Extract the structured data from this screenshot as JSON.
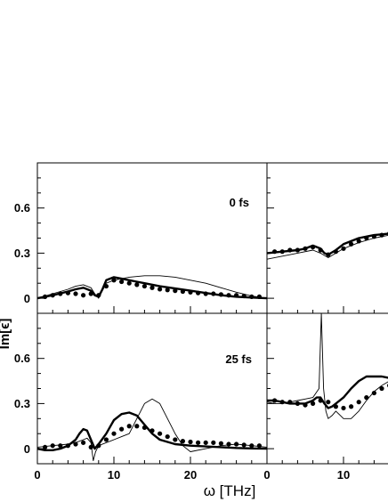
{
  "chart_data": {
    "type": "line",
    "xlabel": "ω  [THz]",
    "ylabel": "Im[ϵ]",
    "xlim": [
      0,
      30
    ],
    "ylim": [
      -0.1,
      0.9
    ],
    "x_ticks": [
      "0",
      "10",
      "20",
      "0",
      "10"
    ],
    "y_ticks": [
      "0",
      "0.3",
      "0.6"
    ],
    "panels": [
      {
        "id": "top-left",
        "label": "0 fs",
        "series": [
          {
            "style": "thick",
            "x": [
              0,
              2,
              4,
              5,
              6,
              7,
              7.5,
              8,
              8.5,
              9,
              10,
              11,
              12,
              13,
              14,
              16,
              18,
              20,
              22,
              24,
              26,
              28,
              30
            ],
            "y": [
              0,
              0.02,
              0.045,
              0.06,
              0.07,
              0.05,
              0.02,
              0.01,
              0.06,
              0.12,
              0.14,
              0.13,
              0.12,
              0.11,
              0.1,
              0.08,
              0.065,
              0.05,
              0.035,
              0.02,
              0.01,
              0.005,
              0
            ]
          },
          {
            "style": "thin",
            "x": [
              0,
              2,
              4,
              5,
              6,
              7,
              7.5,
              8,
              8.5,
              9,
              10,
              12,
              14,
              16,
              18,
              20,
              22,
              24,
              26,
              28,
              30
            ],
            "y": [
              0,
              0.03,
              0.06,
              0.08,
              0.09,
              0.07,
              0.03,
              0.0,
              0.05,
              0.1,
              0.12,
              0.14,
              0.15,
              0.15,
              0.14,
              0.12,
              0.1,
              0.07,
              0.04,
              0.015,
              0
            ]
          },
          {
            "style": "dots",
            "x": [
              1,
              2,
              3,
              4,
              5,
              6,
              7,
              8,
              9,
              10,
              11,
              12,
              13,
              14,
              15,
              16,
              17,
              18,
              19,
              20,
              21,
              22,
              23,
              24,
              25,
              26,
              27,
              28,
              29
            ],
            "y": [
              0.01,
              0.02,
              0.03,
              0.035,
              0.03,
              0.02,
              0.03,
              0.02,
              0.08,
              0.12,
              0.11,
              0.1,
              0.09,
              0.08,
              0.07,
              0.06,
              0.055,
              0.05,
              0.045,
              0.04,
              0.035,
              0.03,
              0.03,
              0.025,
              0.02,
              0.02,
              0.015,
              0.01,
              0.01
            ]
          }
        ]
      },
      {
        "id": "top-right",
        "label": "",
        "series": [
          {
            "style": "thick",
            "x": [
              0,
              2,
              4,
              5,
              6,
              7,
              7.5,
              8,
              9,
              10,
              11,
              12,
              13,
              14,
              15,
              16
            ],
            "y": [
              0.3,
              0.31,
              0.32,
              0.33,
              0.35,
              0.33,
              0.3,
              0.29,
              0.32,
              0.36,
              0.38,
              0.4,
              0.41,
              0.42,
              0.425,
              0.43
            ]
          },
          {
            "style": "thin",
            "x": [
              0,
              2,
              4,
              6,
              7,
              8,
              9,
              10,
              12,
              14,
              16
            ],
            "y": [
              0.26,
              0.28,
              0.3,
              0.32,
              0.3,
              0.27,
              0.3,
              0.33,
              0.37,
              0.4,
              0.42
            ]
          },
          {
            "style": "dots",
            "x": [
              1,
              2,
              3,
              4,
              5,
              6,
              7,
              8,
              9,
              10,
              11,
              12,
              13,
              14,
              15,
              16
            ],
            "y": [
              0.31,
              0.31,
              0.32,
              0.32,
              0.33,
              0.34,
              0.32,
              0.29,
              0.31,
              0.33,
              0.36,
              0.38,
              0.4,
              0.41,
              0.42,
              0.43
            ]
          }
        ]
      },
      {
        "id": "bottom-left",
        "label": "25 fs",
        "series": [
          {
            "style": "thick",
            "x": [
              0,
              1,
              2,
              3,
              4,
              5,
              5.5,
              6,
              6.5,
              7,
              7.5,
              8,
              9,
              10,
              11,
              12,
              13,
              14,
              15,
              16,
              18,
              20,
              22,
              24,
              26,
              28,
              30
            ],
            "y": [
              0,
              -0.01,
              -0.01,
              0,
              0.02,
              0.06,
              0.1,
              0.13,
              0.12,
              0.06,
              0.0,
              0.03,
              0.1,
              0.19,
              0.23,
              0.24,
              0.22,
              0.16,
              0.1,
              0.06,
              0.03,
              0.02,
              0.015,
              0.01,
              0.005,
              0.002,
              0
            ]
          },
          {
            "style": "thin",
            "x": [
              0,
              2,
              4,
              5,
              6,
              6.5,
              7,
              7.3,
              7.6,
              8,
              9,
              10,
              11,
              12,
              13,
              14,
              15,
              16,
              17,
              18,
              19,
              20,
              22,
              24,
              26,
              28,
              30
            ],
            "y": [
              0.01,
              0.02,
              0.03,
              0.04,
              0.06,
              0.07,
              0.04,
              -0.08,
              -0.02,
              0.02,
              0.04,
              0.06,
              0.08,
              0.1,
              0.2,
              0.3,
              0.33,
              0.3,
              0.2,
              0.1,
              0.02,
              -0.02,
              0.0,
              0.02,
              0.03,
              0.02,
              0.01
            ]
          },
          {
            "style": "dots",
            "x": [
              1,
              2,
              3,
              4,
              5,
              6,
              7,
              8,
              9,
              10,
              11,
              12,
              13,
              14,
              15,
              16,
              17,
              18,
              19,
              20,
              21,
              22,
              23,
              24,
              25,
              26,
              27,
              28,
              29
            ],
            "y": [
              0.01,
              0.02,
              0.02,
              0.02,
              0.03,
              0.04,
              0.01,
              0.02,
              0.06,
              0.1,
              0.13,
              0.15,
              0.15,
              0.14,
              0.12,
              0.1,
              0.08,
              0.06,
              0.05,
              0.045,
              0.04,
              0.04,
              0.04,
              0.035,
              0.03,
              0.03,
              0.025,
              0.02,
              0.02
            ]
          }
        ]
      },
      {
        "id": "bottom-right",
        "label": "",
        "series": [
          {
            "style": "thick",
            "x": [
              0,
              1,
              2,
              3,
              4,
              5,
              6,
              6.5,
              7,
              7.5,
              8,
              8.5,
              9,
              10,
              11,
              12,
              13,
              14,
              15,
              16
            ],
            "y": [
              0.32,
              0.32,
              0.31,
              0.3,
              0.3,
              0.3,
              0.32,
              0.34,
              0.34,
              0.3,
              0.27,
              0.28,
              0.3,
              0.34,
              0.4,
              0.45,
              0.48,
              0.48,
              0.48,
              0.47
            ]
          },
          {
            "style": "thin",
            "x": [
              0,
              1,
              2,
              3,
              4,
              5,
              6,
              6.8,
              7.1,
              7.4,
              7.7,
              8,
              8.5,
              9,
              10,
              11,
              12,
              13,
              14,
              15,
              16
            ],
            "y": [
              0.31,
              0.3,
              0.3,
              0.31,
              0.32,
              0.33,
              0.34,
              0.4,
              0.9,
              0.4,
              0.25,
              0.2,
              0.22,
              0.25,
              0.2,
              0.2,
              0.25,
              0.32,
              0.38,
              0.42,
              0.45
            ]
          },
          {
            "style": "dots",
            "x": [
              1,
              2,
              3,
              4,
              5,
              6,
              7,
              8,
              9,
              10,
              11,
              12,
              13,
              14,
              15,
              16
            ],
            "y": [
              0.32,
              0.31,
              0.31,
              0.3,
              0.29,
              0.3,
              0.32,
              0.31,
              0.28,
              0.27,
              0.28,
              0.31,
              0.34,
              0.37,
              0.4,
              0.42
            ]
          }
        ]
      }
    ]
  }
}
